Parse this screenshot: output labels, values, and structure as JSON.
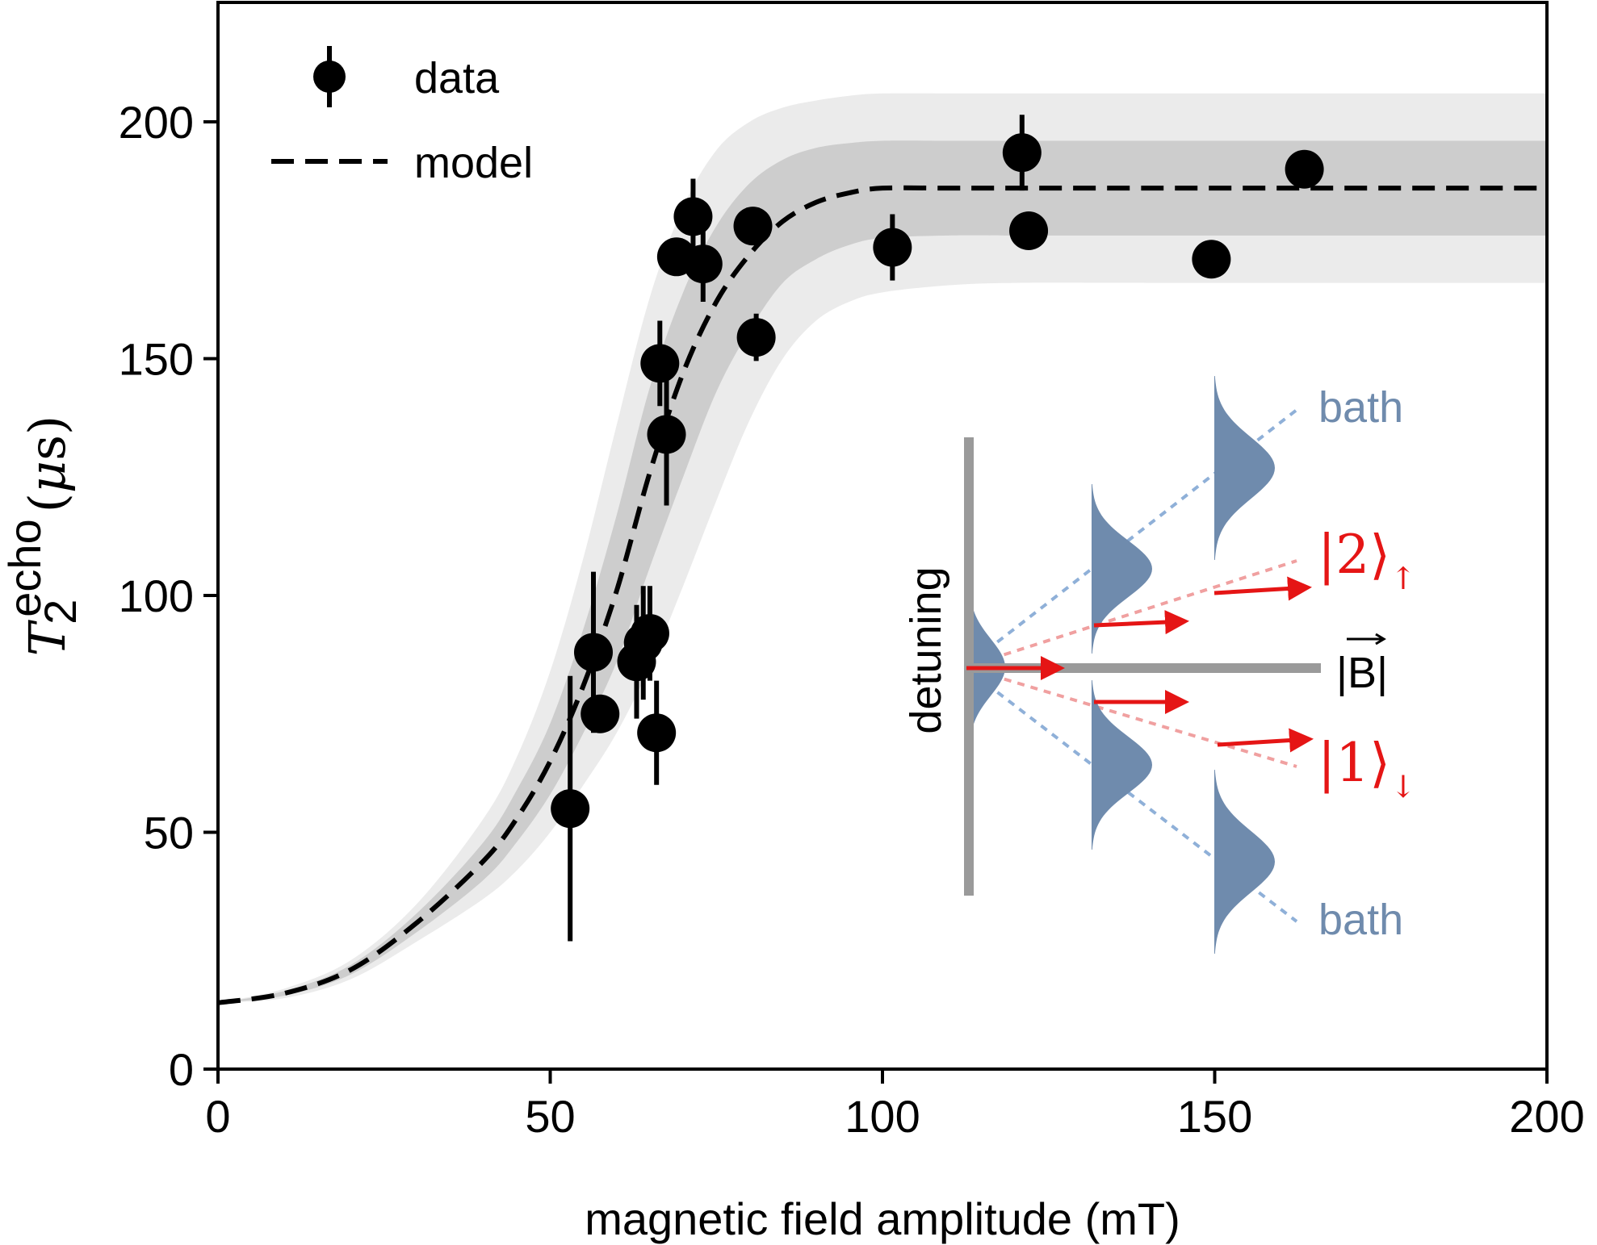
{
  "chart_data": {
    "type": "scatter",
    "xlabel": "magnetic field amplitude (mT)",
    "ylabel": {
      "symbol": "T",
      "subscript": "2",
      "superscript": "echo",
      "unit_prefix": "(",
      "unit_mu": "μ",
      "unit_s": "s",
      "unit_suffix": ")"
    },
    "xlim": [
      0,
      200
    ],
    "ylim": [
      0,
      225
    ],
    "xticks": [
      "0",
      "50",
      "100",
      "150",
      "200"
    ],
    "yticks": [
      "0",
      "50",
      "100",
      "150",
      "200"
    ],
    "grid": false,
    "legend": {
      "position": "top-left",
      "entries": [
        "data",
        "model"
      ]
    },
    "series": [
      {
        "name": "data",
        "kind": "errorbar",
        "points": [
          {
            "x": 53.0,
            "y": 55.0,
            "err": 28.0
          },
          {
            "x": 56.5,
            "y": 88.0,
            "err": 17.0
          },
          {
            "x": 57.5,
            "y": 75.0,
            "err": 4.0
          },
          {
            "x": 63.0,
            "y": 86.0,
            "err": 12.0
          },
          {
            "x": 64.0,
            "y": 90.0,
            "err": 12.0
          },
          {
            "x": 65.0,
            "y": 92.0,
            "err": 10.0
          },
          {
            "x": 66.0,
            "y": 71.0,
            "err": 11.0
          },
          {
            "x": 66.5,
            "y": 149.0,
            "err": 9.0
          },
          {
            "x": 67.5,
            "y": 134.0,
            "err": 15.0
          },
          {
            "x": 69.0,
            "y": 171.5,
            "err": 2.0
          },
          {
            "x": 71.5,
            "y": 180.0,
            "err": 8.0
          },
          {
            "x": 73.0,
            "y": 170.0,
            "err": 8.0
          },
          {
            "x": 80.5,
            "y": 178.0,
            "err": 2.0
          },
          {
            "x": 81.0,
            "y": 154.5,
            "err": 5.0
          },
          {
            "x": 101.5,
            "y": 173.5,
            "err": 7.0
          },
          {
            "x": 121.0,
            "y": 193.5,
            "err": 8.0
          },
          {
            "x": 122.0,
            "y": 177.0,
            "err": 2.0
          },
          {
            "x": 149.5,
            "y": 171.0,
            "err": 1.0
          },
          {
            "x": 163.5,
            "y": 190.0,
            "err": 4.0
          }
        ]
      },
      {
        "name": "model",
        "kind": "line",
        "style": "dashed",
        "x": [
          0,
          10,
          20,
          30,
          40,
          45,
          50,
          55,
          60,
          65,
          70,
          75,
          80,
          85,
          90,
          95,
          100,
          110,
          120,
          140,
          160,
          180,
          200
        ],
        "y": [
          14,
          16,
          21,
          31,
          44,
          53,
          65,
          81,
          101,
          126,
          147,
          162,
          172,
          179,
          183,
          185,
          186,
          186,
          186,
          186,
          186,
          186,
          186
        ],
        "band_inner_lo": [
          14,
          15.5,
          20,
          29,
          40,
          48,
          58,
          71,
          86,
          106,
          125,
          143,
          156,
          166,
          171,
          174,
          175.5,
          176,
          176,
          176,
          176,
          176,
          176
        ],
        "band_inner_hi": [
          14,
          16.5,
          22,
          33,
          48,
          59,
          73,
          93,
          117,
          144,
          164,
          178,
          187,
          192,
          194.5,
          195.5,
          196,
          196,
          196,
          196,
          196,
          196,
          196
        ],
        "band_outer_lo": [
          14,
          15,
          19,
          27,
          36,
          42,
          50,
          60,
          71,
          85,
          102,
          120,
          137,
          150,
          158,
          162,
          164,
          165.5,
          166,
          166,
          166,
          166,
          166
        ],
        "band_outer_hi": [
          14,
          17,
          23,
          35,
          53,
          66,
          84,
          108,
          136,
          163,
          182,
          194,
          200,
          203,
          204.5,
          205.5,
          206,
          206,
          206,
          206,
          206,
          206,
          206
        ]
      }
    ],
    "inset": {
      "vertical_label": "detuning",
      "field_label": "|B|",
      "bath_label": "bath",
      "state_up": {
        "ket": "2",
        "spin": "↑"
      },
      "state_down": {
        "ket": "1",
        "spin": "↓"
      },
      "colors": {
        "gray": "#9a9a9a",
        "blue": "#6f8bad",
        "blue_dot": "#8fb0d8",
        "red": "#e51515",
        "red_dot": "#f0a0a0"
      }
    },
    "colors": {
      "data": "#000000",
      "model": "#000000",
      "band_inner": "#cdcdcd",
      "band_outer": "#ebebeb"
    }
  }
}
